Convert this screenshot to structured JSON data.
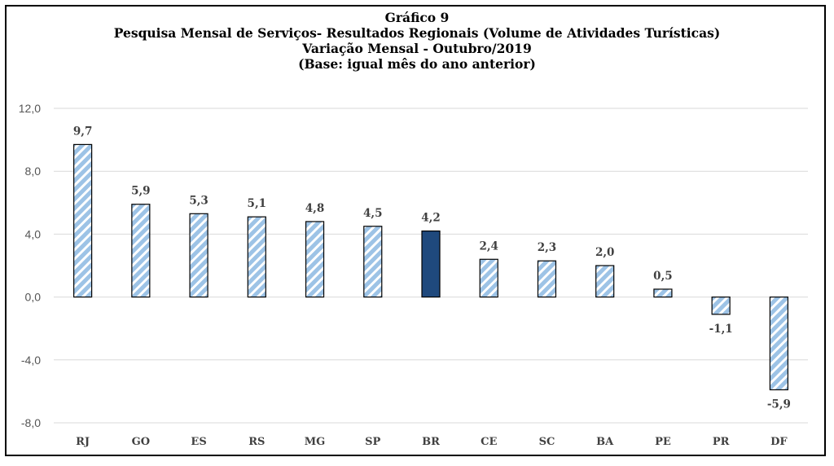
{
  "chart_data": {
    "type": "bar",
    "title": "Gráfico 9",
    "subtitle_lines": [
      "Pesquisa Mensal de Serviços- Resultados Regionais (Volume de Atividades Turísticas)",
      "Variação Mensal - Outubro/2019",
      "(Base: igual mês do ano anterior)"
    ],
    "categories": [
      "RJ",
      "GO",
      "ES",
      "RS",
      "MG",
      "SP",
      "BR",
      "CE",
      "SC",
      "BA",
      "PE",
      "PR",
      "DF"
    ],
    "values": [
      9.7,
      5.9,
      5.3,
      5.1,
      4.8,
      4.5,
      4.2,
      2.4,
      2.3,
      2.0,
      0.5,
      -1.1,
      -5.9
    ],
    "data_labels": [
      "9,7",
      "5,9",
      "5,3",
      "5,1",
      "4,8",
      "4,5",
      "4,2",
      "2,4",
      "2,3",
      "2,0",
      "0,5",
      "-1,1",
      "-5,9"
    ],
    "highlight_category": "BR",
    "ylim": [
      -8,
      12
    ],
    "yticks": [
      -8,
      -4,
      0,
      4,
      8,
      12
    ],
    "ytick_labels": [
      "-8,0",
      "-4,0",
      "0,0",
      "4,0",
      "8,0",
      "12,0"
    ],
    "xlabel": "",
    "ylabel": "",
    "grid": true,
    "colors": {
      "bar_fill": "#9dc3e6",
      "bar_stripe": "#ffffff",
      "highlight_fill": "#1f497d",
      "bar_border": "#000000",
      "grid": "#d9d9d9"
    }
  }
}
